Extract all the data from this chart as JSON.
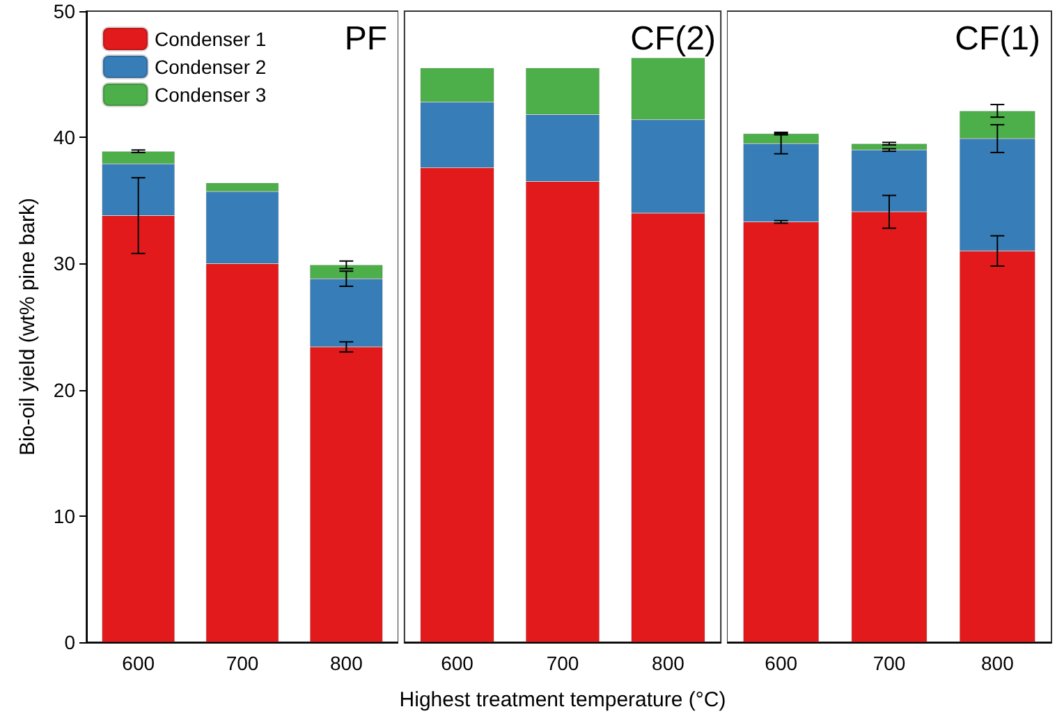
{
  "chart_data": [
    {
      "type": "bar",
      "stacked": true,
      "categories": [
        "600",
        "700",
        "800"
      ],
      "ylabel": "Bio-oil yield (wt% pine bark)",
      "ylim": [
        0,
        50
      ],
      "yticks": [
        0,
        10,
        20,
        30,
        40,
        50
      ],
      "annotations": [
        "PF"
      ],
      "legend": "top left",
      "grid": false,
      "series": [
        {
          "name": "Condenser 1",
          "color": "#e31a1c",
          "values": [
            33.8,
            30.0,
            23.4
          ],
          "errors": [
            3.0,
            null,
            0.4
          ]
        },
        {
          "name": "Condenser 2",
          "color": "#377eb8",
          "values": [
            4.1,
            5.7,
            5.4
          ],
          "errors": [
            null,
            null,
            0.6
          ]
        },
        {
          "name": "Condenser 3",
          "color": "#4daf4a",
          "values": [
            1.0,
            0.7,
            1.1
          ],
          "errors": [
            0.1,
            null,
            0.3
          ]
        }
      ]
    },
    {
      "type": "bar",
      "stacked": true,
      "categories": [
        "600",
        "700",
        "800"
      ],
      "xlabel": "Highest treatment temperature (°C)",
      "ylim": [
        0,
        50
      ],
      "tick_labels": "x",
      "annotations": [
        "CF(2)"
      ],
      "grid": false,
      "series": [
        {
          "color": "#e31a1c",
          "values": [
            37.6,
            36.5,
            34.0
          ]
        },
        {
          "color": "#377eb8",
          "values": [
            5.2,
            5.3,
            7.4
          ]
        },
        {
          "color": "#4daf4a",
          "values": [
            2.7,
            3.7,
            4.9
          ]
        }
      ]
    },
    {
      "type": "bar",
      "stacked": true,
      "categories": [
        "600",
        "700",
        "800"
      ],
      "ylim": [
        0,
        50
      ],
      "tick_labels": "x",
      "annotations": [
        "CF(1)"
      ],
      "grid": false,
      "series": [
        {
          "color": "#e31a1c",
          "values": [
            33.3,
            34.1,
            31.0
          ],
          "errors": [
            0.1,
            1.3,
            1.2
          ]
        },
        {
          "color": "#377eb8",
          "values": [
            6.2,
            4.9,
            8.9
          ],
          "errors": [
            0.8,
            0.1,
            1.1
          ]
        },
        {
          "color": "#4daf4a",
          "values": [
            0.8,
            0.5,
            2.2
          ],
          "errors": [
            0.1,
            0.1,
            0.5
          ]
        }
      ]
    }
  ]
}
